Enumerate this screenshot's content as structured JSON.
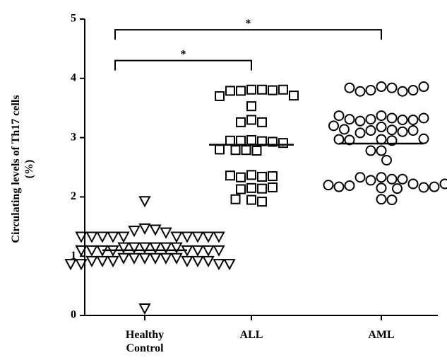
{
  "chart_data": {
    "type": "strip",
    "y_label": "Circulating levels of Th17 cells (%)",
    "categories": [
      "Healthy Control",
      "ALL",
      "AML"
    ],
    "color": "#000000",
    "ylim": [
      0,
      5
    ],
    "yticks": [
      0,
      1,
      2,
      3,
      4,
      5
    ],
    "series": [
      {
        "marker": "triangle-down",
        "values": [
          1.93,
          0.12,
          1.47,
          1.45,
          1.43,
          1.4,
          1.33,
          1.33,
          1.33,
          1.33,
          1.33,
          1.33,
          1.33,
          1.33,
          1.33,
          1.33,
          1.15,
          1.15,
          1.15,
          1.15,
          1.15,
          1.15,
          1.1,
          1.1,
          1.1,
          1.1,
          1.1,
          1.1,
          1.1,
          1.1,
          0.97,
          0.97,
          0.97,
          0.97,
          0.97,
          0.97,
          0.92,
          0.92,
          0.92,
          0.92,
          0.92,
          0.92,
          0.87,
          0.87,
          0.87,
          0.87
        ]
      },
      {
        "marker": "square",
        "values": [
          3.81,
          3.81,
          3.79,
          3.8,
          3.79,
          3.81,
          3.7,
          3.71,
          3.53,
          3.3,
          3.26,
          3.26,
          2.96,
          2.94,
          2.95,
          2.93,
          2.95,
          2.91,
          2.79,
          2.78,
          2.79,
          2.8,
          2.37,
          2.34,
          2.33,
          2.35,
          2.36,
          2.15,
          2.14,
          2.13,
          2.16,
          1.95,
          1.92,
          1.96
        ]
      },
      {
        "marker": "circle",
        "values": [
          3.86,
          3.84,
          3.8,
          3.78,
          3.78,
          3.8,
          3.84,
          3.86,
          3.37,
          3.33,
          3.31,
          3.3,
          3.28,
          3.3,
          3.31,
          3.33,
          3.37,
          3.2,
          3.18,
          3.13,
          3.12,
          3.1,
          3.08,
          3.12,
          3.14,
          2.97,
          2.96,
          2.98,
          2.95,
          2.97,
          2.78,
          2.78,
          2.62,
          2.33,
          2.3,
          2.28,
          2.3,
          2.33,
          2.22,
          2.19,
          2.16,
          2.15,
          2.17,
          2.14,
          2.17,
          2.2,
          2.22,
          1.96,
          1.95
        ]
      }
    ],
    "means": [
      1.1,
      2.88,
      2.9
    ],
    "annotations": [
      {
        "text": "*",
        "from": 0,
        "to": 1,
        "y": 4.3
      },
      {
        "text": "*",
        "from": 0,
        "to": 2,
        "y": 4.82
      }
    ]
  }
}
